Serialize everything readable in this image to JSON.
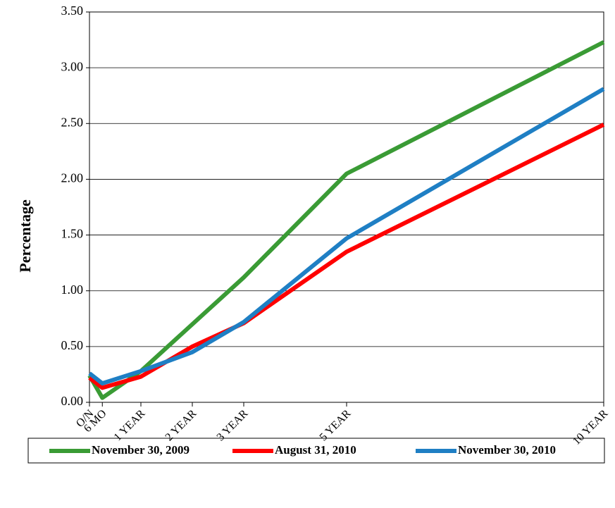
{
  "chart_data": {
    "type": "line",
    "y_label": "Percentage",
    "x": [
      0,
      0.25,
      1,
      2,
      3,
      5,
      10
    ],
    "xlim": [
      0,
      10
    ],
    "xticks": [
      {
        "value": 0,
        "label": "O/N"
      },
      {
        "value": 0.25,
        "label": "6 MO"
      },
      {
        "value": 1,
        "label": "1 YEAR"
      },
      {
        "value": 2,
        "label": "2 YEAR"
      },
      {
        "value": 3,
        "label": "3 YEAR"
      },
      {
        "value": 5,
        "label": "5 YEAR"
      },
      {
        "value": 10,
        "label": "10 YEAR"
      }
    ],
    "ylim": [
      0,
      3.5
    ],
    "yticks": [
      {
        "value": 0,
        "label": "0.00"
      },
      {
        "value": 0.5,
        "label": "0.50"
      },
      {
        "value": 1,
        "label": "1.00"
      },
      {
        "value": 1.5,
        "label": "1.50"
      },
      {
        "value": 2,
        "label": "2.00"
      },
      {
        "value": 2.5,
        "label": "2.50"
      },
      {
        "value": 3,
        "label": "3.00"
      },
      {
        "value": 3.5,
        "label": "3.50"
      }
    ],
    "grid": true,
    "legend": "bottom",
    "series": [
      {
        "name": "November 30, 2009",
        "color": "#3a9b35",
        "values": [
          0.24,
          0.04,
          0.28,
          0.7,
          1.12,
          2.05,
          3.23
        ]
      },
      {
        "name": "August 31, 2010",
        "color": "#ff0000",
        "values": [
          0.22,
          0.13,
          0.23,
          0.5,
          0.71,
          1.35,
          2.49
        ]
      },
      {
        "name": "November 30, 2010",
        "color": "#1f7fc4",
        "values": [
          0.26,
          0.17,
          0.28,
          0.45,
          0.72,
          1.47,
          2.81
        ]
      }
    ]
  }
}
